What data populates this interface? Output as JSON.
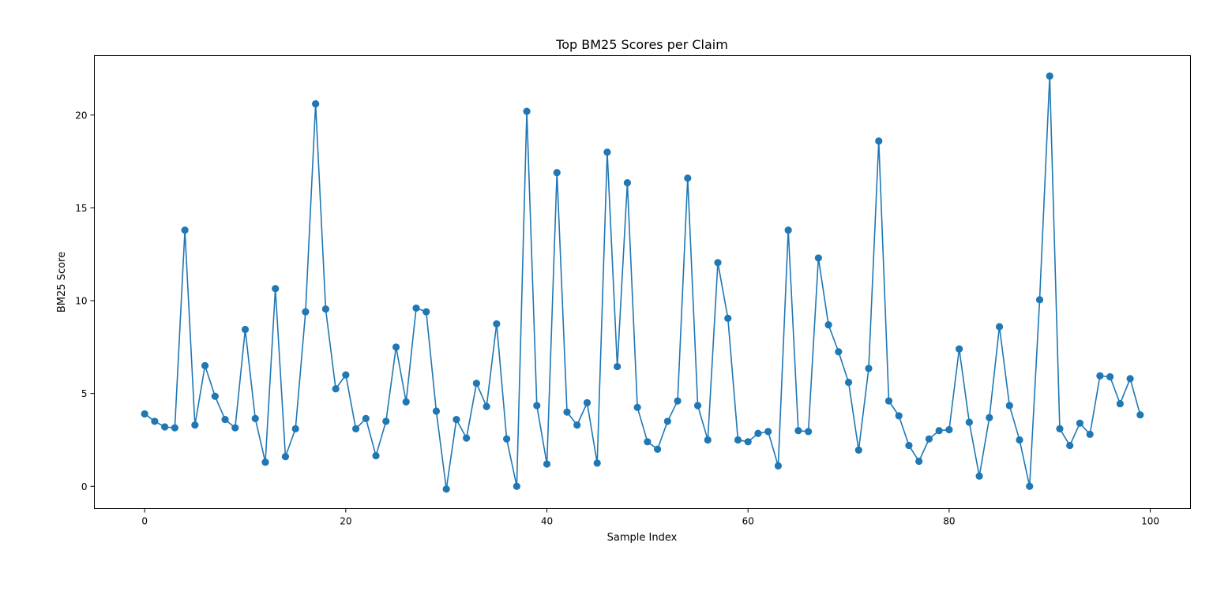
{
  "chart_data": {
    "type": "line",
    "title": "Top BM25 Scores per Claim",
    "xlabel": "Sample Index",
    "ylabel": "BM25 Score",
    "xlim": [
      -5,
      104
    ],
    "ylim": [
      -1.2,
      23.2
    ],
    "xticks": [
      "0",
      "20",
      "40",
      "60",
      "80",
      "100"
    ],
    "yticks": [
      "0",
      "5",
      "10",
      "15",
      "20"
    ],
    "grid": false,
    "legend": "none",
    "marker": "circle",
    "color": "#1f77b4",
    "x": [
      0,
      1,
      2,
      3,
      4,
      5,
      6,
      7,
      8,
      9,
      10,
      11,
      12,
      13,
      14,
      15,
      16,
      17,
      18,
      19,
      20,
      21,
      22,
      23,
      24,
      25,
      26,
      27,
      28,
      29,
      30,
      31,
      32,
      33,
      34,
      35,
      36,
      37,
      38,
      39,
      40,
      41,
      42,
      43,
      44,
      45,
      46,
      47,
      48,
      49,
      50,
      51,
      52,
      53,
      54,
      55,
      56,
      57,
      58,
      59,
      60,
      61,
      62,
      63,
      64,
      65,
      66,
      67,
      68,
      69,
      70,
      71,
      72,
      73,
      74,
      75,
      76,
      77,
      78,
      79,
      80,
      81,
      82,
      83,
      84,
      85,
      86,
      87,
      88,
      89,
      90,
      91,
      92,
      93,
      94,
      95,
      96,
      97,
      98,
      99
    ],
    "y": [
      3.9,
      3.5,
      3.2,
      3.15,
      13.8,
      3.3,
      6.5,
      4.85,
      3.6,
      3.15,
      8.45,
      3.65,
      1.3,
      10.65,
      1.6,
      3.1,
      9.4,
      20.6,
      9.55,
      5.25,
      6.0,
      3.1,
      3.65,
      1.65,
      3.5,
      7.5,
      4.55,
      9.6,
      9.4,
      4.05,
      -0.15,
      3.6,
      2.6,
      5.55,
      4.3,
      8.75,
      2.55,
      0.0,
      20.2,
      4.35,
      1.2,
      16.9,
      4.0,
      3.3,
      4.5,
      1.25,
      18.0,
      6.45,
      16.35,
      4.25,
      2.4,
      2.0,
      3.5,
      4.6,
      16.6,
      4.35,
      2.5,
      12.05,
      9.05,
      2.5,
      2.4,
      2.85,
      2.95,
      1.1,
      13.8,
      3.0,
      2.95,
      12.3,
      8.7,
      7.25,
      5.6,
      1.95,
      6.35,
      18.6,
      4.6,
      3.8,
      2.2,
      1.35,
      2.55,
      3.0,
      3.05,
      7.4,
      3.45,
      0.55,
      3.7,
      8.6,
      4.35,
      2.5,
      0.0,
      10.05,
      22.1,
      3.1,
      2.2,
      3.4,
      2.8,
      5.95,
      5.9,
      4.45,
      5.8,
      3.85
    ]
  }
}
